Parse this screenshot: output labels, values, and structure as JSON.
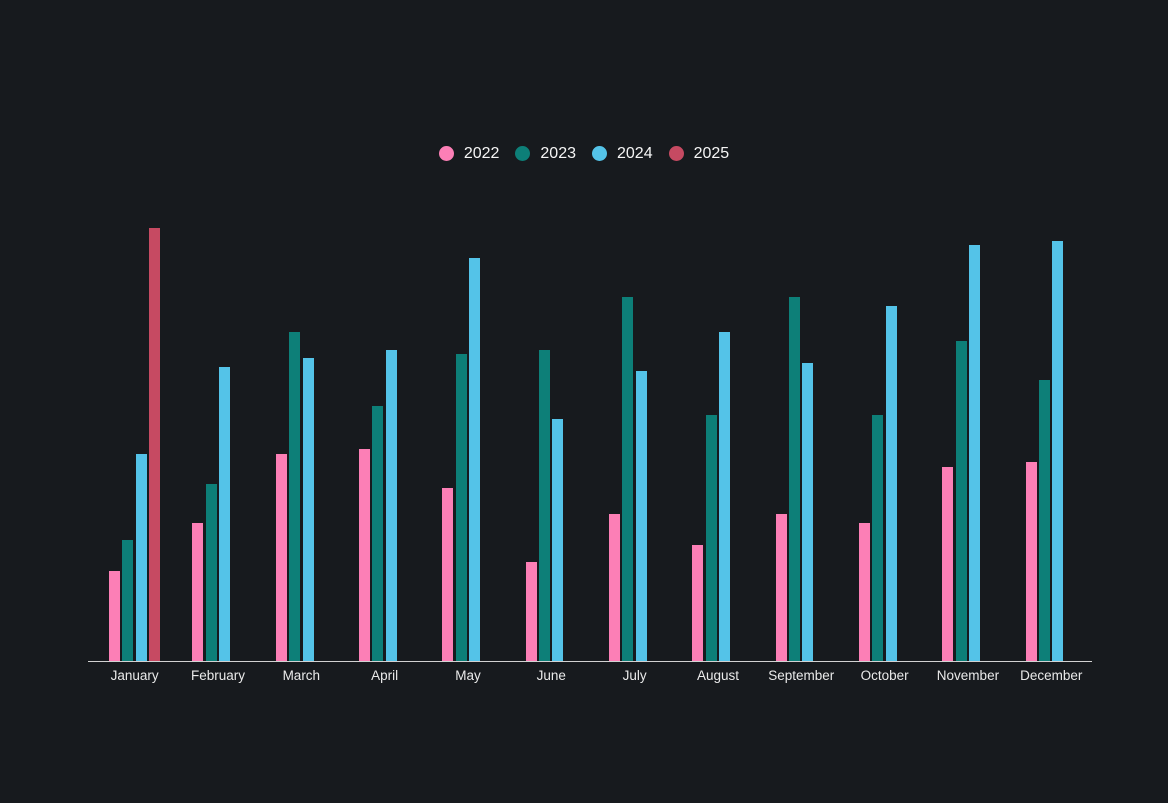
{
  "page": {
    "background_color": "#171a1e",
    "axis_color": "#d2d2d2",
    "label_color": "#eaeaea",
    "legend_text_color": "#f5f5f5"
  },
  "legend": {
    "position": "top-center",
    "items": [
      {
        "label": "2022",
        "color": "#fc7fb6"
      },
      {
        "label": "2023",
        "color": "#0d7f78"
      },
      {
        "label": "2024",
        "color": "#54c3e8"
      },
      {
        "label": "2025",
        "color": "#c64a62"
      }
    ]
  },
  "chart_data": {
    "type": "bar",
    "title": "",
    "xlabel": "",
    "ylabel": "",
    "ylim": [
      0,
      100
    ],
    "grid": false,
    "y_axis_shown": false,
    "legend_position": "top",
    "categories": [
      "January",
      "February",
      "March",
      "April",
      "May",
      "June",
      "July",
      "August",
      "September",
      "October",
      "November",
      "December"
    ],
    "series": [
      {
        "name": "2022",
        "color": "#fc7fb6",
        "values": [
          21,
          32,
          48,
          49,
          40,
          23,
          34,
          27,
          34,
          32,
          45,
          46
        ]
      },
      {
        "name": "2023",
        "color": "#0d7f78",
        "values": [
          28,
          41,
          76,
          59,
          71,
          72,
          84,
          57,
          84,
          57,
          74,
          65
        ]
      },
      {
        "name": "2024",
        "color": "#54c3e8",
        "values": [
          48,
          68,
          70,
          72,
          93,
          56,
          67,
          76,
          69,
          82,
          96,
          97
        ]
      },
      {
        "name": "2025",
        "color": "#c64a62",
        "values": [
          100,
          null,
          null,
          null,
          null,
          null,
          null,
          null,
          null,
          null,
          null,
          null
        ]
      }
    ]
  }
}
